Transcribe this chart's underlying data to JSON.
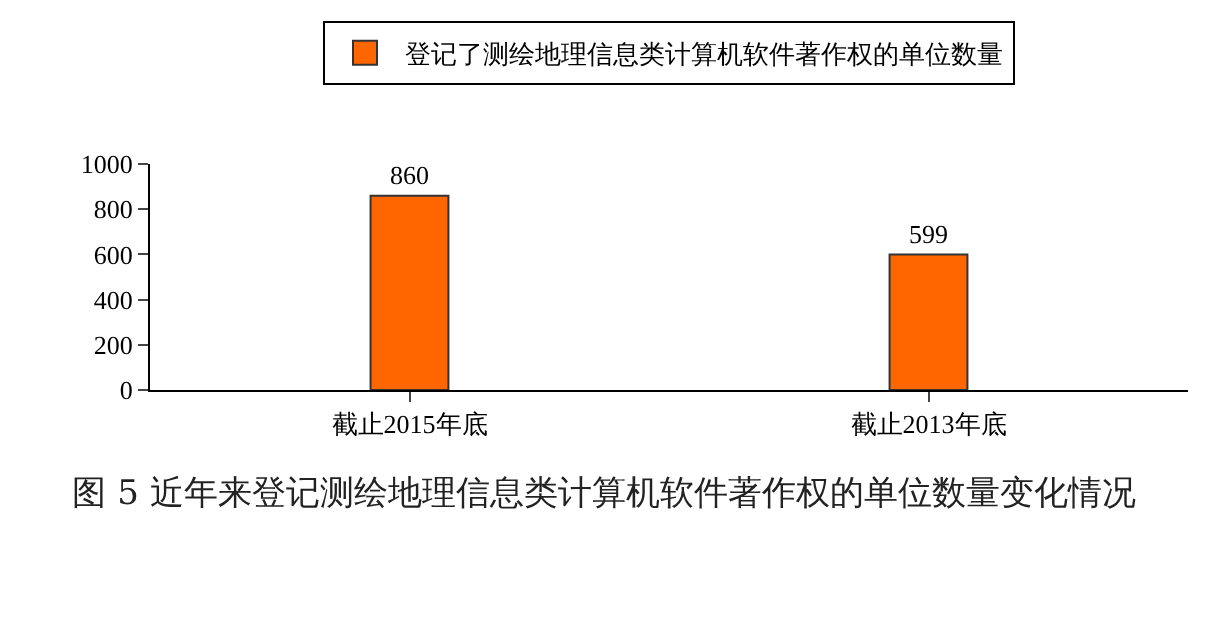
{
  "chart_data": {
    "type": "bar",
    "categories": [
      "截止2015年底",
      "截止2013年底"
    ],
    "series": [
      {
        "name": "登记了测绘地理信息类计算机软件著作权的单位数量",
        "color": "#ff6600",
        "values": [
          860,
          599
        ]
      }
    ],
    "ylim": [
      0,
      1000
    ],
    "yticks": [
      0,
      200,
      400,
      600,
      800,
      1000
    ],
    "grid": false,
    "legend": "top",
    "data_labels": true,
    "annotations": [
      "图 5  近年来登记测绘地理信息类计算机软件著作权的单位数量变化情况"
    ]
  }
}
